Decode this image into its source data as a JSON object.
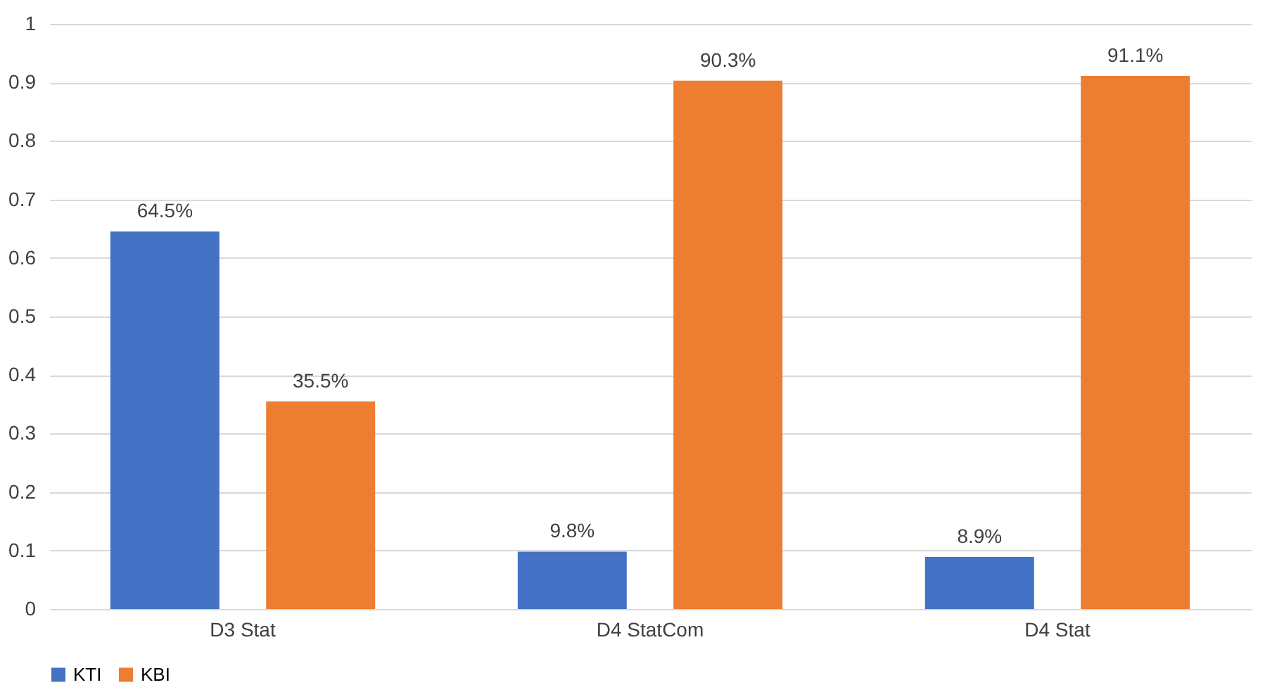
{
  "chart_data": {
    "type": "bar",
    "categories": [
      "D3 Stat",
      "D4 StatCom",
      "D4 Stat"
    ],
    "series": [
      {
        "name": "KTI",
        "color": "#4472c4",
        "values": [
          0.645,
          0.098,
          0.089
        ],
        "value_labels": [
          "64.5%",
          "9.8%",
          "8.9%"
        ]
      },
      {
        "name": "KBI",
        "color": "#ed7d31",
        "values": [
          0.355,
          0.903,
          0.911
        ],
        "value_labels": [
          "35.5%",
          "90.3%",
          "91.1%"
        ]
      }
    ],
    "ylim": [
      0,
      1
    ],
    "yticks": [
      0,
      0.1,
      0.2,
      0.3,
      0.4,
      0.5,
      0.6,
      0.7,
      0.8,
      0.9,
      1
    ],
    "grid": "y",
    "legend": "bottom"
  }
}
